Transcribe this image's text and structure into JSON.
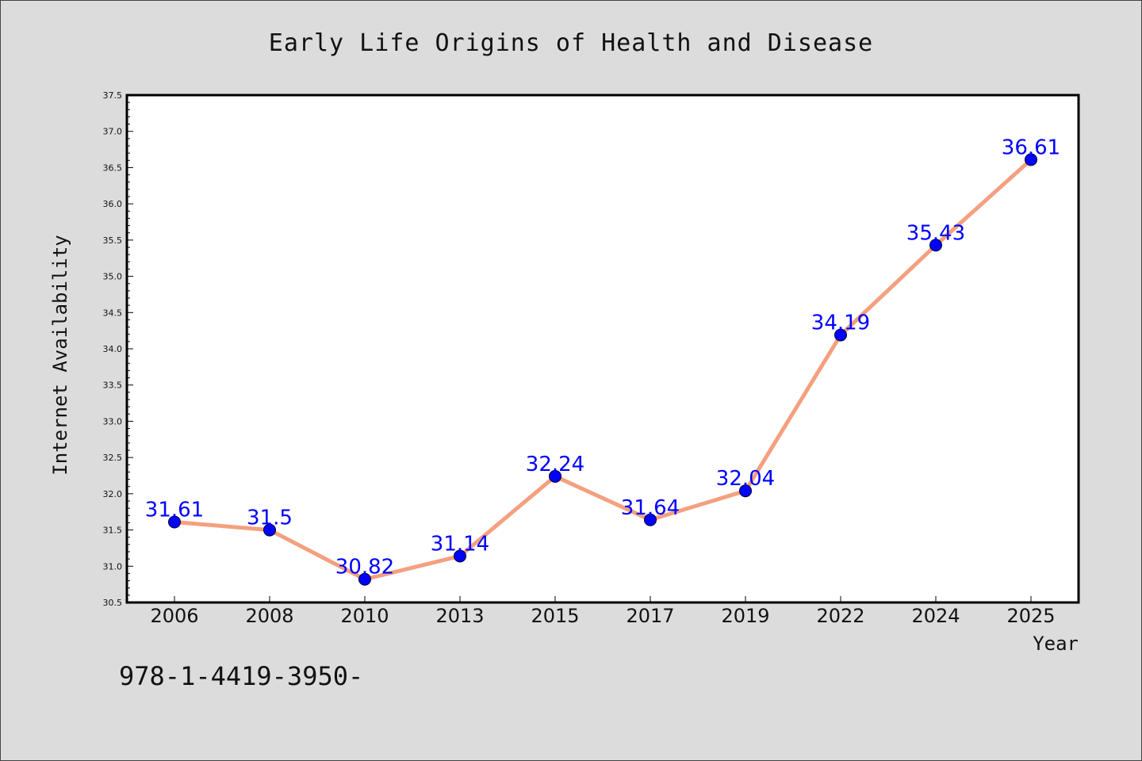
{
  "chart_data": {
    "type": "line",
    "title": "Early Life Origins of Health and Disease",
    "xlabel": "Year",
    "ylabel": "Internet Availability",
    "categories": [
      "2006",
      "2008",
      "2010",
      "2013",
      "2015",
      "2017",
      "2019",
      "2022",
      "2024",
      "2025"
    ],
    "series": [
      {
        "values": [
          31.61,
          31.5,
          30.82,
          31.14,
          32.24,
          31.64,
          32.04,
          34.19,
          35.43,
          36.61
        ],
        "labels": [
          "31.61",
          "31.5",
          "30.82",
          "31.14",
          "32.24",
          "31.64",
          "32.04",
          "34.19",
          "35.43",
          "36.61"
        ],
        "line_color": "#f4a07f",
        "marker_color": "#0000ff"
      }
    ],
    "ylim": [
      30.5,
      37.5
    ],
    "yticks": [
      "30.5",
      "31.0",
      "31.5",
      "32.0",
      "32.5",
      "33.0",
      "33.5",
      "34.0",
      "34.5",
      "35.0",
      "35.5",
      "36.0",
      "36.5",
      "37.0",
      "37.5"
    ],
    "grid": false,
    "legend": "none",
    "footer_text": "978-1-4419-3950-"
  },
  "colors": {
    "background": "#dcdcdc",
    "plot_background": "#ffffff",
    "label_color": "#0000ff"
  }
}
